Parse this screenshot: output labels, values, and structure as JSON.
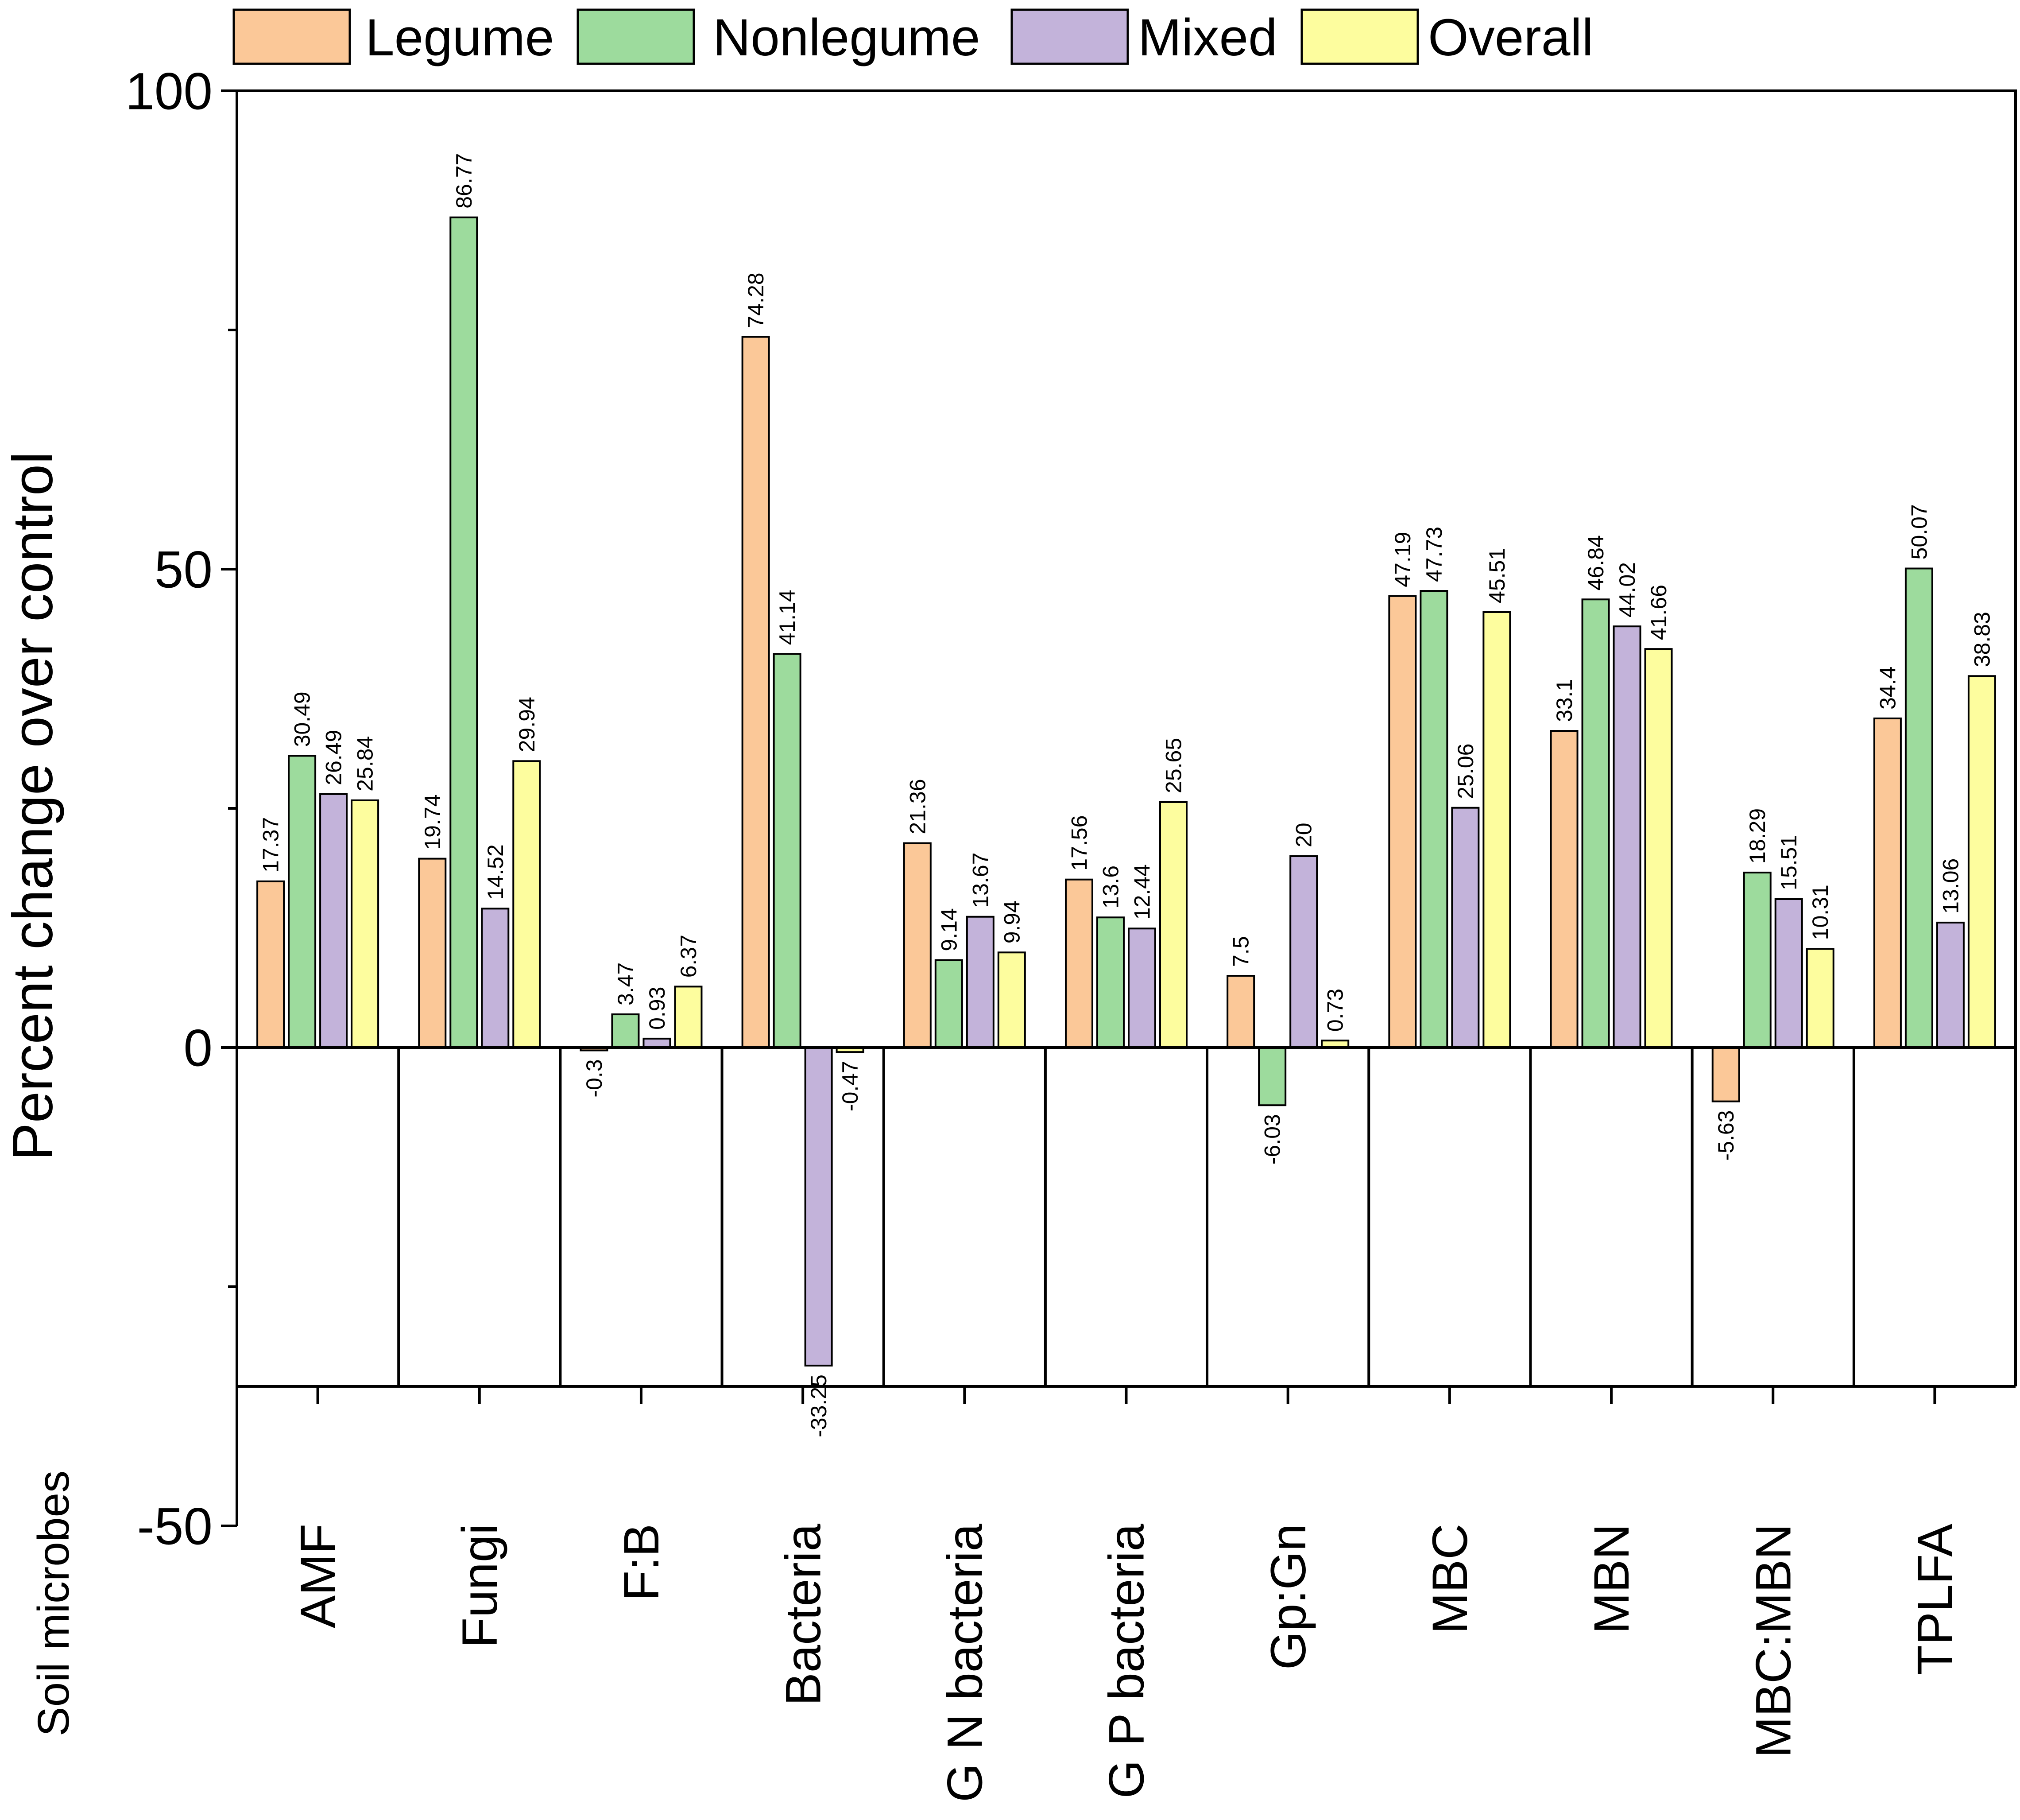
{
  "chart_data": {
    "type": "bar",
    "title": "",
    "ylabel": "Percent change over control",
    "xlabel": "",
    "section_label": "Soil microbes",
    "ylim": [
      -50,
      100
    ],
    "yticks": [
      -50,
      0,
      50,
      100
    ],
    "categories": [
      "AMF",
      "Fungi",
      "F:B",
      "Bacteria",
      "G N bacteria",
      "G P bacteria",
      "Gp:Gn",
      "MBC",
      "MBN",
      "MBC:MBN",
      "TPLFA"
    ],
    "series": [
      {
        "name": "Legume",
        "color": "#FBC898",
        "values": [
          17.37,
          19.74,
          -0.3,
          74.28,
          21.36,
          17.56,
          7.5,
          47.19,
          33.1,
          -5.63,
          34.4
        ]
      },
      {
        "name": "Nonlegume",
        "color": "#9DDB9D",
        "values": [
          30.49,
          86.77,
          3.47,
          41.14,
          9.14,
          13.6,
          -6.03,
          47.73,
          46.84,
          18.29,
          50.07
        ]
      },
      {
        "name": "Mixed",
        "color": "#C3B3DA",
        "values": [
          26.49,
          14.52,
          0.93,
          -33.25,
          13.67,
          12.44,
          20,
          25.06,
          44.02,
          15.51,
          13.06
        ]
      },
      {
        "name": "Overall",
        "color": "#FDFD9E",
        "values": [
          25.84,
          29.94,
          6.37,
          -0.47,
          9.94,
          25.65,
          0.73,
          45.51,
          41.66,
          10.31,
          38.83
        ]
      }
    ],
    "data_labels": [
      [
        "17.37",
        "30.49",
        "26.49",
        "25.84"
      ],
      [
        "19.74",
        "86.77",
        "14.52",
        "29.94"
      ],
      [
        "-0.3",
        "3.47",
        "0.93",
        "6.37"
      ],
      [
        "74.28",
        "41.14",
        "-33.25",
        "-0.47"
      ],
      [
        "21.36",
        "9.14",
        "13.67",
        "9.94"
      ],
      [
        "17.56",
        "13.6",
        "12.44",
        "25.65"
      ],
      [
        "7.5",
        "-6.03",
        "20",
        "0.73"
      ],
      [
        "47.19",
        "47.73",
        "25.06",
        "45.51"
      ],
      [
        "33.1",
        "46.84",
        "44.02",
        "41.66"
      ],
      [
        "-5.63",
        "18.29",
        "15.51",
        "10.31"
      ],
      [
        "34.4",
        "50.07",
        "13.06",
        "38.83"
      ]
    ],
    "legend_position": "top",
    "grid": false
  }
}
